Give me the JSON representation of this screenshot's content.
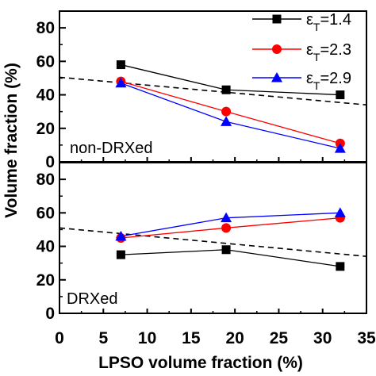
{
  "chart_data": {
    "type": "line",
    "xlabel": "LPSO volume fraction (%)",
    "ylabel": "Volume fraction (%)",
    "xlim": [
      0,
      35
    ],
    "xticks": [
      "0",
      "5",
      "10",
      "15",
      "20",
      "25",
      "30",
      "35"
    ],
    "x_tick_values": [
      0,
      5,
      10,
      15,
      20,
      25,
      30,
      35
    ],
    "panels": [
      {
        "label": "non-DRXed",
        "ylim": [
          0,
          90
        ],
        "yticks": [
          "0",
          "20",
          "40",
          "60",
          "80"
        ],
        "y_tick_values": [
          0,
          20,
          40,
          60,
          80
        ],
        "x": [
          7,
          19,
          32
        ],
        "series": [
          {
            "name": "1.4",
            "color": "#000000",
            "marker": "square",
            "values": [
              58,
              43,
              40
            ]
          },
          {
            "name": "2.3",
            "color": "#ff0000",
            "marker": "circle",
            "values": [
              48,
              30,
              11
            ]
          },
          {
            "name": "2.9",
            "color": "#0000ff",
            "marker": "triangle",
            "values": [
              47,
              24,
              8
            ]
          }
        ],
        "trendline": {
          "style": "dashed",
          "x": [
            0,
            35
          ],
          "y": [
            50.5,
            34
          ]
        }
      },
      {
        "label": "DRXed",
        "ylim": [
          0,
          90
        ],
        "yticks": [
          "0",
          "20",
          "40",
          "60",
          "80"
        ],
        "y_tick_values": [
          0,
          20,
          40,
          60,
          80
        ],
        "x": [
          7,
          19,
          32
        ],
        "series": [
          {
            "name": "1.4",
            "color": "#000000",
            "marker": "square",
            "values": [
              35,
              38,
              28
            ]
          },
          {
            "name": "2.3",
            "color": "#ff0000",
            "marker": "circle",
            "values": [
              45,
              51,
              57
            ]
          },
          {
            "name": "2.9",
            "color": "#0000ff",
            "marker": "triangle",
            "values": [
              46,
              57,
              60
            ]
          }
        ],
        "trendline": {
          "style": "dashed",
          "x": [
            0,
            35
          ],
          "y": [
            51,
            34
          ]
        }
      }
    ],
    "legend": {
      "placement": "top-right",
      "symbol": "ε",
      "subscript": "T",
      "entries": [
        "1.4",
        "2.3",
        "2.9"
      ]
    }
  }
}
